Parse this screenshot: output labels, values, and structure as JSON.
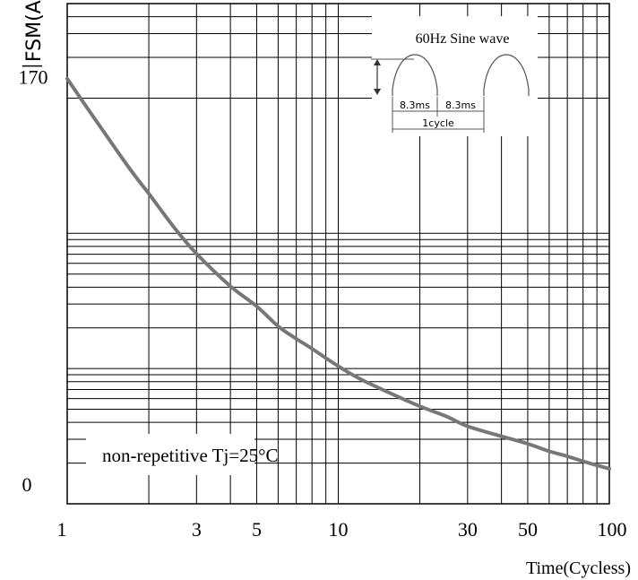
{
  "chart_data": {
    "type": "line",
    "ylabel": "IFSM(A)",
    "ylabel_main": "I",
    "ylabel_sub": "FSM(A)",
    "xlabel": "Time(Cycless)",
    "x_scale": "log",
    "xlim": [
      1,
      100
    ],
    "ylim": [
      0,
      200
    ],
    "xticks": [
      1,
      3,
      5,
      10,
      30,
      50,
      100
    ],
    "xtick_labels": [
      "1",
      "3",
      "5",
      "10",
      "30",
      "50",
      "100"
    ],
    "yticks": [
      0,
      170
    ],
    "ytick_labels": [
      "0",
      "170"
    ],
    "grid": true,
    "series": [
      {
        "x": [
          1,
          1.3,
          1.7,
          2,
          2.5,
          3,
          4,
          5,
          6,
          7,
          8,
          10,
          12,
          15,
          20,
          25,
          30,
          40,
          50,
          60,
          70,
          80,
          100
        ],
        "y": [
          170,
          152,
          134,
          124,
          110,
          100,
          87,
          79,
          71,
          66,
          62,
          55,
          50,
          45,
          39,
          35,
          31,
          27,
          24,
          21,
          19,
          17,
          14
        ]
      }
    ],
    "annotations": {
      "inset_title": "60Hz Sine wave",
      "half_period_1": "8.3ms",
      "half_period_2": "8.3ms",
      "cycle_label": "1cycle",
      "condition": "non-repetitive Tj=25°C"
    }
  }
}
